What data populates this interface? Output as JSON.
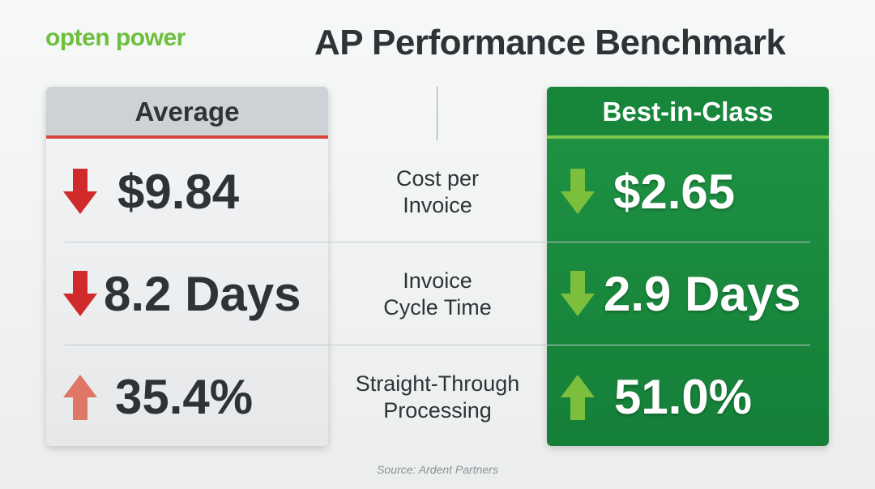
{
  "logo": "opten power",
  "title": "AP Performance Benchmark",
  "columns": {
    "average": "Average",
    "best": "Best-in-Class"
  },
  "rows": [
    {
      "label": [
        "Cost per",
        "Invoice"
      ],
      "average": "$9.84",
      "best": "$2.65"
    },
    {
      "label": [
        "Invoice",
        "Cycle Time"
      ],
      "average": "8.2 Days",
      "best": "2.9 Days"
    },
    {
      "label": [
        "Straight-Through",
        "Processing"
      ],
      "average": "35.4%",
      "best": "51.0%"
    }
  ],
  "source": "Source: Ardent Partners"
}
